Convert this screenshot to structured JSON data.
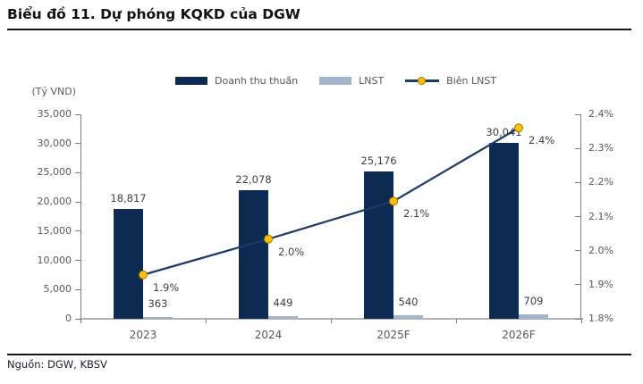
{
  "header": {
    "title": "Biểu đồ 11. Dự phóng KQKD của DGW"
  },
  "footer": {
    "source": "Nguồn: DGW, KBSV"
  },
  "chart_data": {
    "type": "bar+line combo",
    "title": "Biểu đồ 11. Dự phóng KQKD của DGW",
    "unit_label": "(Tỷ VND)",
    "categories": [
      "2023",
      "2024",
      "2025F",
      "2026F"
    ],
    "series": [
      {
        "name": "Doanh thu thuần",
        "type": "bar",
        "axis": "left",
        "values": [
          18817,
          22078,
          25176,
          30041
        ],
        "labels": [
          "18,817",
          "22,078",
          "25,176",
          "30,041"
        ]
      },
      {
        "name": "LNST",
        "type": "bar",
        "axis": "left",
        "values": [
          363,
          449,
          540,
          709
        ],
        "labels": [
          "363",
          "449",
          "540",
          "709"
        ]
      },
      {
        "name": "Biên LNST",
        "type": "line",
        "axis": "right",
        "values": [
          1.929,
          2.034,
          2.145,
          2.36
        ],
        "labels": [
          "1.9%",
          "2.0%",
          "2.1%",
          "2.4%"
        ]
      }
    ],
    "left_axis": {
      "title": "(Tỷ VND)",
      "min": 0,
      "max": 35000,
      "step": 5000,
      "tick_labels": [
        "0",
        "5,000",
        "10,000",
        "15,000",
        "20,000",
        "25,000",
        "30,000",
        "35,000"
      ]
    },
    "right_axis": {
      "min": 1.8,
      "max": 2.4,
      "step": 0.1,
      "tick_labels": [
        "1.8%",
        "1.9%",
        "2.0%",
        "2.1%",
        "2.2%",
        "2.3%",
        "2.4%"
      ]
    },
    "grid": false,
    "legend_position": "top-center",
    "colors": {
      "bar_primary": "#0d2a52",
      "bar_secondary": "#a3b4cf",
      "line": "#1f3a68",
      "marker": "#ffc000",
      "marker_border": "#9e7c00",
      "axis": "#7f7f7f",
      "baseline": "#b3b3b3",
      "tick_text": "#595959",
      "label_text": "#404040"
    }
  }
}
